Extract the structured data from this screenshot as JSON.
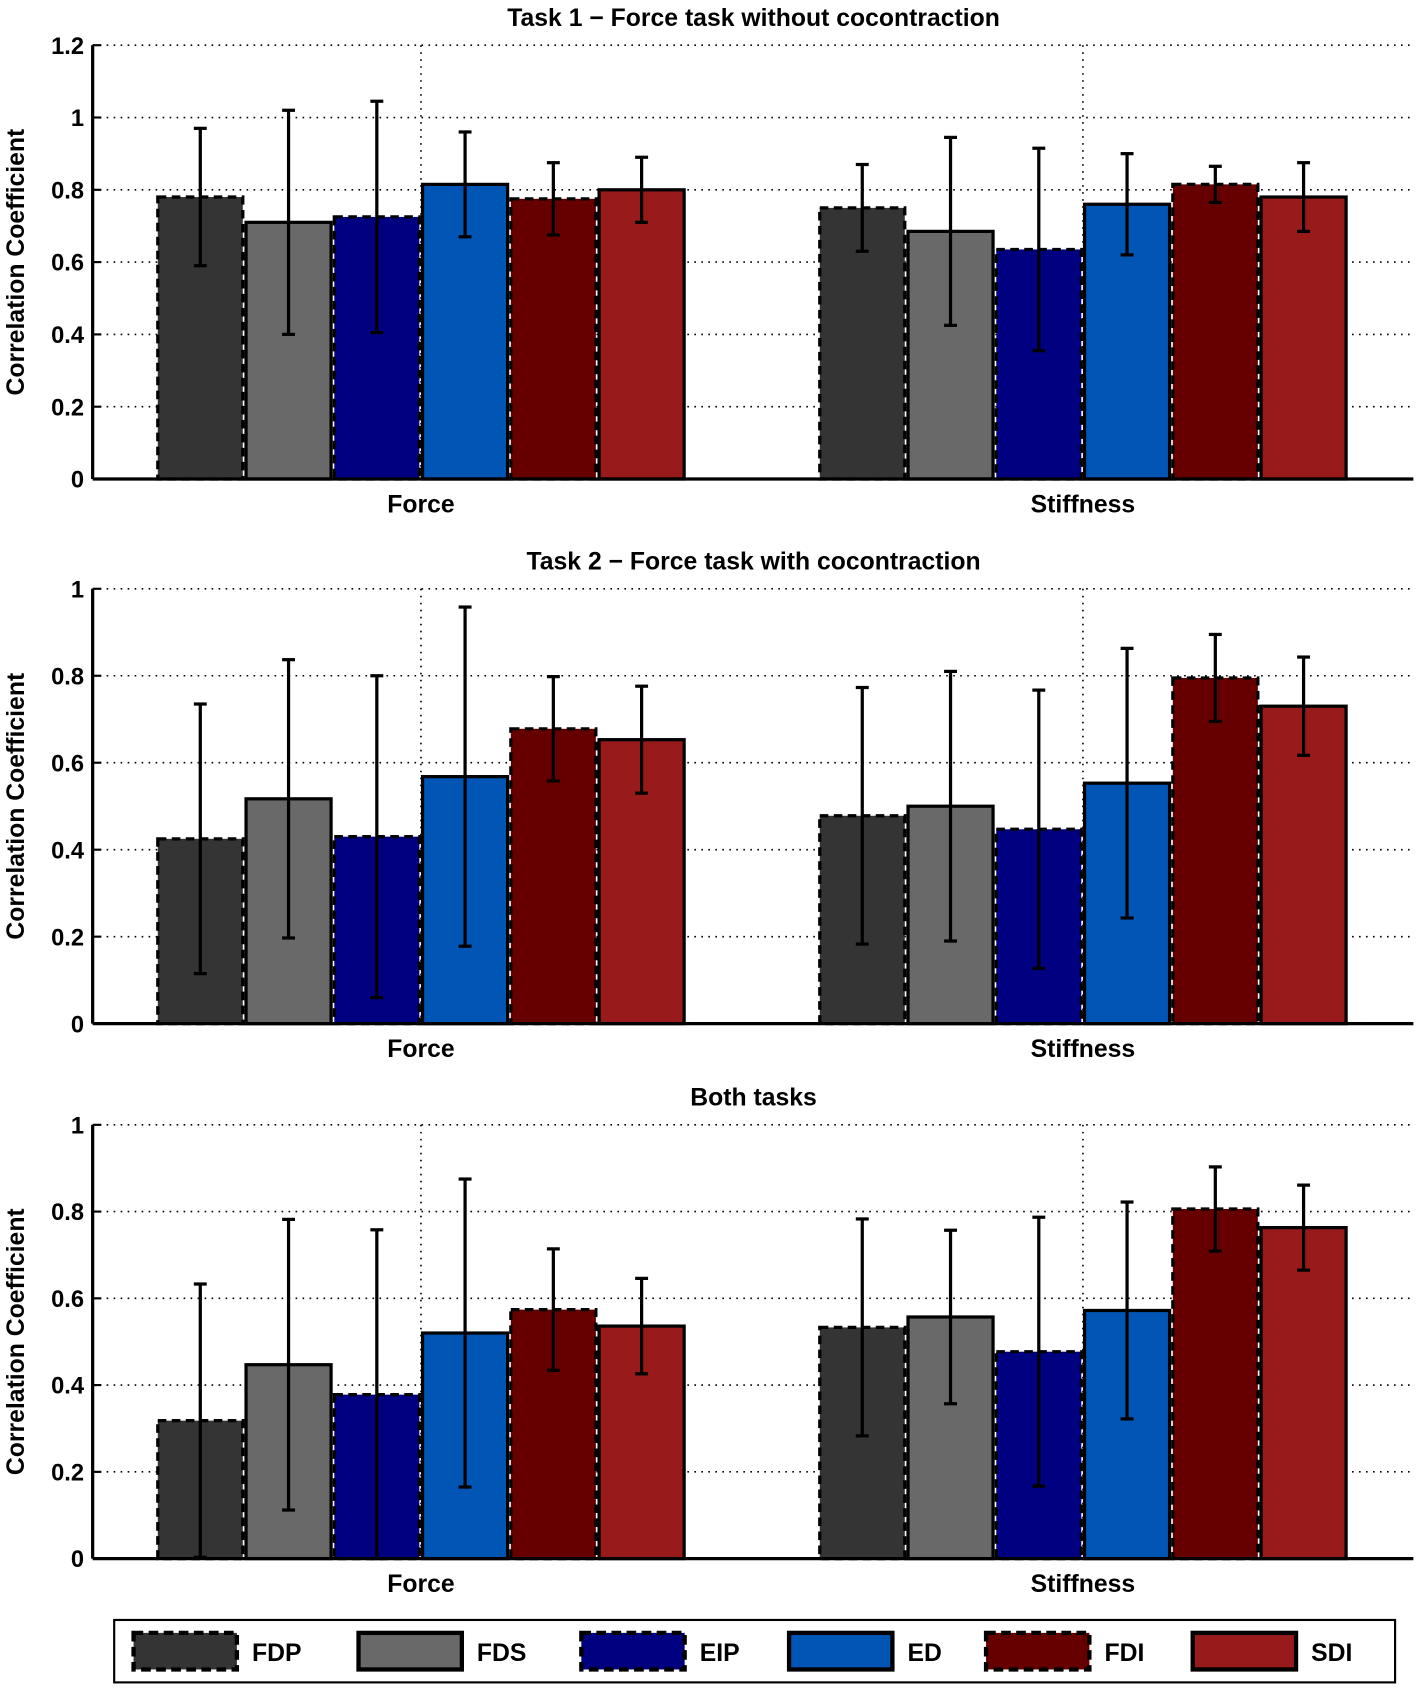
{
  "chart_data": [
    {
      "type": "bar",
      "title": "Task 1 − Force task without cocontraction",
      "ylabel": "Correlation Coefficient",
      "categories": [
        "Force",
        "Stiffness"
      ],
      "ylim": [
        0,
        1.2
      ],
      "yticks": [
        "0",
        "0.2",
        "0.4",
        "0.6",
        "0.8",
        "1",
        "1.2"
      ],
      "grid": true,
      "series": [
        {
          "name": "FDP",
          "values": [
            0.78,
            0.75
          ],
          "errors": [
            0.19,
            0.12
          ]
        },
        {
          "name": "FDS",
          "values": [
            0.71,
            0.685
          ],
          "errors": [
            0.31,
            0.26
          ]
        },
        {
          "name": "EIP",
          "values": [
            0.725,
            0.635
          ],
          "errors": [
            0.32,
            0.28
          ]
        },
        {
          "name": "ED",
          "values": [
            0.815,
            0.76
          ],
          "errors": [
            0.145,
            0.14
          ]
        },
        {
          "name": "FDI",
          "values": [
            0.775,
            0.815
          ],
          "errors": [
            0.1,
            0.05
          ]
        },
        {
          "name": "SDI",
          "values": [
            0.8,
            0.78
          ],
          "errors": [
            0.09,
            0.095
          ]
        }
      ]
    },
    {
      "type": "bar",
      "title": "Task 2 − Force task with cocontraction",
      "ylabel": "Correlation Coefficient",
      "categories": [
        "Force",
        "Stiffness"
      ],
      "ylim": [
        0,
        1
      ],
      "yticks": [
        "0",
        "0.2",
        "0.4",
        "0.6",
        "0.8",
        "1"
      ],
      "grid": true,
      "series": [
        {
          "name": "FDP",
          "values": [
            0.425,
            0.478
          ],
          "errors": [
            0.31,
            0.295
          ]
        },
        {
          "name": "FDS",
          "values": [
            0.517,
            0.5
          ],
          "errors": [
            0.32,
            0.31
          ]
        },
        {
          "name": "EIP",
          "values": [
            0.43,
            0.447
          ],
          "errors": [
            0.37,
            0.32
          ]
        },
        {
          "name": "ED",
          "values": [
            0.568,
            0.553
          ],
          "errors": [
            0.39,
            0.31
          ]
        },
        {
          "name": "FDI",
          "values": [
            0.678,
            0.795
          ],
          "errors": [
            0.12,
            0.1
          ]
        },
        {
          "name": "SDI",
          "values": [
            0.653,
            0.73
          ],
          "errors": [
            0.123,
            0.113
          ]
        }
      ]
    },
    {
      "type": "bar",
      "title": "Both tasks",
      "ylabel": "Correlation Coefficient",
      "categories": [
        "Force",
        "Stiffness"
      ],
      "ylim": [
        0,
        1
      ],
      "yticks": [
        "0",
        "0.2",
        "0.4",
        "0.6",
        "0.8",
        "1"
      ],
      "grid": true,
      "series": [
        {
          "name": "FDP",
          "values": [
            0.318,
            0.533
          ],
          "errors": [
            0.315,
            0.25
          ]
        },
        {
          "name": "FDS",
          "values": [
            0.447,
            0.557
          ],
          "errors": [
            0.335,
            0.2
          ]
        },
        {
          "name": "EIP",
          "values": [
            0.378,
            0.477
          ],
          "errors": [
            0.38,
            0.31
          ]
        },
        {
          "name": "ED",
          "values": [
            0.52,
            0.572
          ],
          "errors": [
            0.355,
            0.25
          ]
        },
        {
          "name": "FDI",
          "values": [
            0.574,
            0.806
          ],
          "errors": [
            0.14,
            0.097
          ]
        },
        {
          "name": "SDI",
          "values": [
            0.536,
            0.763
          ],
          "errors": [
            0.11,
            0.098
          ]
        }
      ]
    }
  ],
  "legend": {
    "placement": "bottom",
    "items": [
      {
        "name": "FDP",
        "color": "#343434",
        "dashed": true
      },
      {
        "name": "FDS",
        "color": "#696969",
        "dashed": false
      },
      {
        "name": "EIP",
        "color": "#000080",
        "dashed": true
      },
      {
        "name": "ED",
        "color": "#0055b5",
        "dashed": false
      },
      {
        "name": "FDI",
        "color": "#660000",
        "dashed": true
      },
      {
        "name": "SDI",
        "color": "#991a1a",
        "dashed": false
      }
    ]
  }
}
